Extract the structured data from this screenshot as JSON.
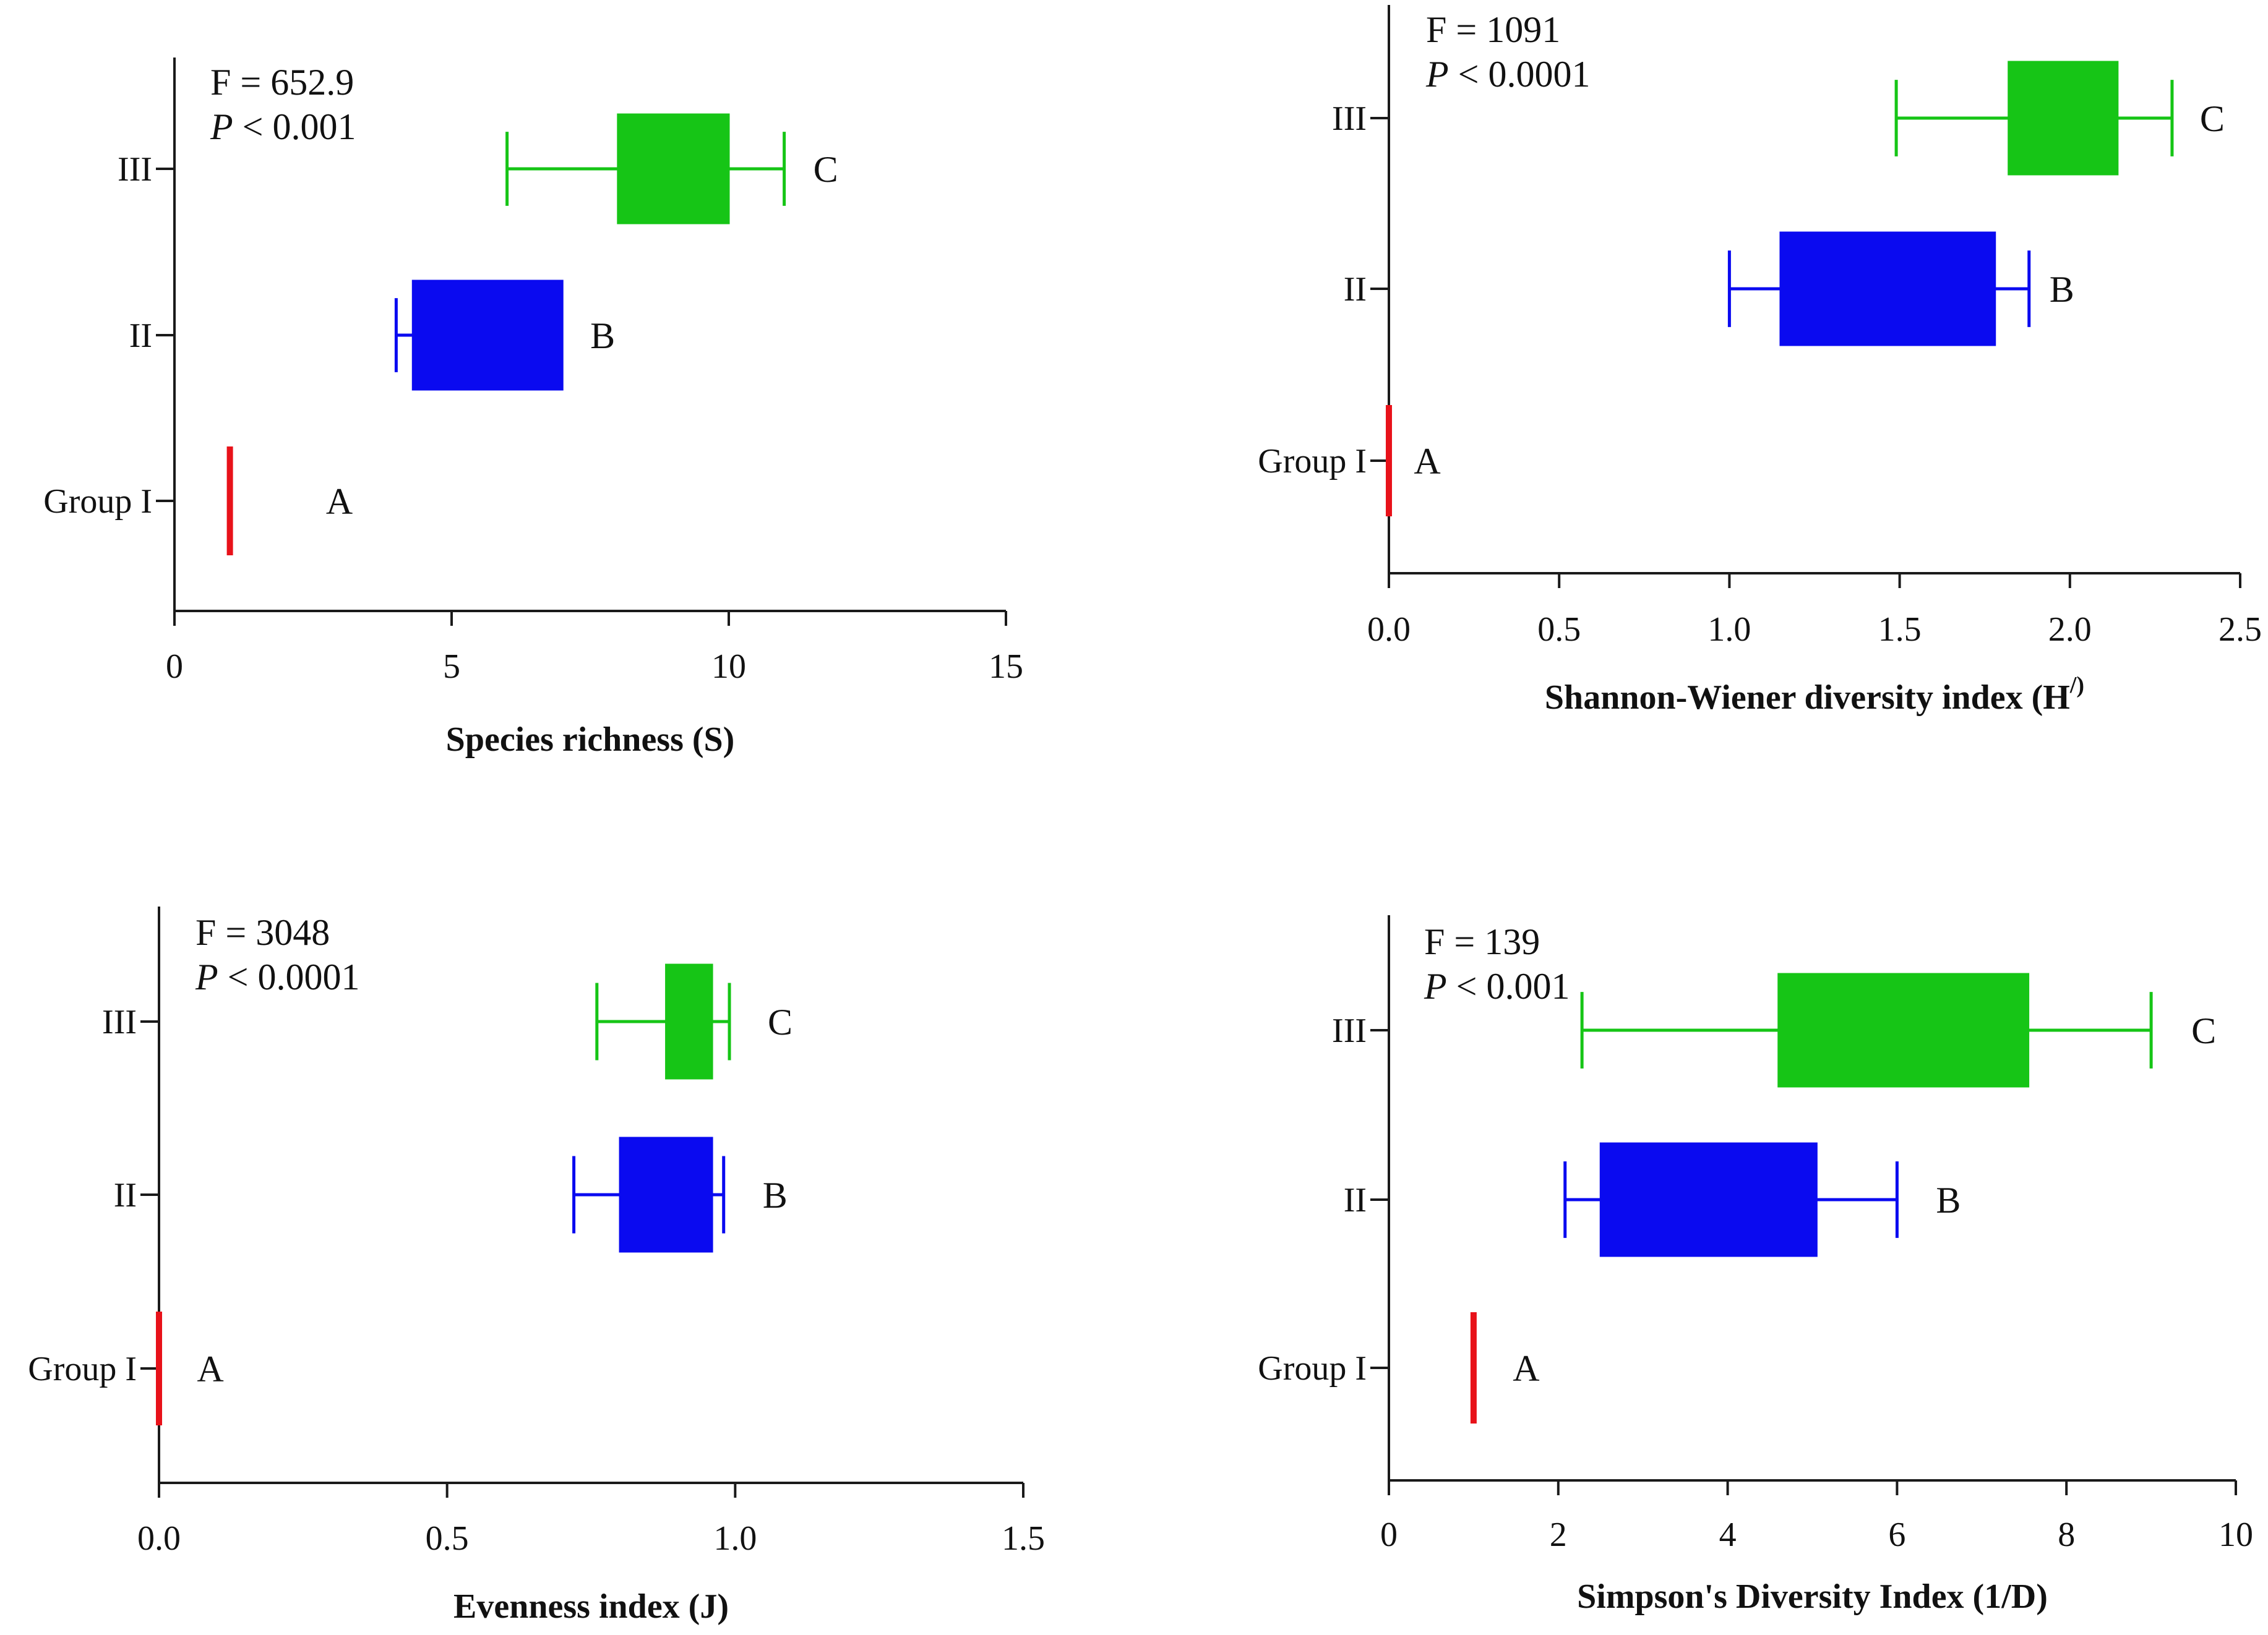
{
  "chart_data": [
    {
      "type": "boxplot",
      "xlabel": "Species richness (S)",
      "xlim": [
        0,
        15
      ],
      "xticks": [
        {
          "value": 0,
          "label": "0"
        },
        {
          "value": 5,
          "label": "5"
        },
        {
          "value": 10,
          "label": "10"
        },
        {
          "value": 15,
          "label": "15"
        }
      ],
      "stat_f": "F = 652.9",
      "stat_p_symbol": "P",
      "stat_p_rest": " < 0.001",
      "groups": [
        {
          "label": "Group I",
          "letter": "A",
          "color": "#e8121a",
          "whisker_low": 1,
          "q1": 1,
          "q3": 1,
          "whisker_high": 1
        },
        {
          "label": "II",
          "letter": "B",
          "color": "#0a0af0",
          "whisker_low": 4,
          "q1": 4.3,
          "q3": 7,
          "whisker_high": 7
        },
        {
          "label": "III",
          "letter": "C",
          "color": "#16c516",
          "whisker_low": 6,
          "q1": 8,
          "q3": 10,
          "whisker_high": 11
        }
      ]
    },
    {
      "type": "boxplot",
      "xlabel": "Shannon-Wiener diversity index (H",
      "xlabel_sup": "/)",
      "xlim": [
        0,
        2.5
      ],
      "xticks": [
        {
          "value": 0,
          "label": "0.0"
        },
        {
          "value": 0.5,
          "label": "0.5"
        },
        {
          "value": 1,
          "label": "1.0"
        },
        {
          "value": 1.5,
          "label": "1.5"
        },
        {
          "value": 2,
          "label": "2.0"
        },
        {
          "value": 2.5,
          "label": "2.5"
        }
      ],
      "stat_f": "F = 1091",
      "stat_p_symbol": "P",
      "stat_p_rest": " < 0.0001",
      "groups": [
        {
          "label": "Group I",
          "letter": "A",
          "color": "#e8121a",
          "whisker_low": 0,
          "q1": 0,
          "q3": 0,
          "whisker_high": 0
        },
        {
          "label": "II",
          "letter": "B",
          "color": "#0a0af0",
          "whisker_low": 1.0,
          "q1": 1.15,
          "q3": 1.78,
          "whisker_high": 1.88
        },
        {
          "label": "III",
          "letter": "C",
          "color": "#16c516",
          "whisker_low": 1.49,
          "q1": 1.82,
          "q3": 2.14,
          "whisker_high": 2.3
        }
      ]
    },
    {
      "type": "boxplot",
      "xlabel": "Evenness index (J)",
      "xlim": [
        0,
        1.5
      ],
      "xticks": [
        {
          "value": 0,
          "label": "0.0"
        },
        {
          "value": 0.5,
          "label": "0.5"
        },
        {
          "value": 1,
          "label": "1.0"
        },
        {
          "value": 1.5,
          "label": "1.5"
        }
      ],
      "stat_f": "F = 3048",
      "stat_p_symbol": "P",
      "stat_p_rest": " < 0.0001",
      "groups": [
        {
          "label": "Group I",
          "letter": "A",
          "color": "#e8121a",
          "whisker_low": 0,
          "q1": 0,
          "q3": 0,
          "whisker_high": 0
        },
        {
          "label": "II",
          "letter": "B",
          "color": "#0a0af0",
          "whisker_low": 0.72,
          "q1": 0.8,
          "q3": 0.96,
          "whisker_high": 0.98
        },
        {
          "label": "III",
          "letter": "C",
          "color": "#16c516",
          "whisker_low": 0.76,
          "q1": 0.88,
          "q3": 0.96,
          "whisker_high": 0.99
        }
      ]
    },
    {
      "type": "boxplot",
      "xlabel": "Simpson's Diversity Index (1/D)",
      "xlim": [
        0,
        10
      ],
      "xticks": [
        {
          "value": 0,
          "label": "0"
        },
        {
          "value": 2,
          "label": "2"
        },
        {
          "value": 4,
          "label": "4"
        },
        {
          "value": 6,
          "label": "6"
        },
        {
          "value": 8,
          "label": "8"
        },
        {
          "value": 10,
          "label": "10"
        }
      ],
      "stat_f": "F = 139",
      "stat_p_symbol": "P",
      "stat_p_rest": " < 0.001",
      "groups": [
        {
          "label": "Group I",
          "letter": "A",
          "color": "#e8121a",
          "whisker_low": 1,
          "q1": 1,
          "q3": 1,
          "whisker_high": 1
        },
        {
          "label": "II",
          "letter": "B",
          "color": "#0a0af0",
          "whisker_low": 2.08,
          "q1": 2.5,
          "q3": 5.05,
          "whisker_high": 6.0
        },
        {
          "label": "III",
          "letter": "C",
          "color": "#16c516",
          "whisker_low": 2.28,
          "q1": 4.6,
          "q3": 7.55,
          "whisker_high": 9.0
        }
      ]
    }
  ]
}
